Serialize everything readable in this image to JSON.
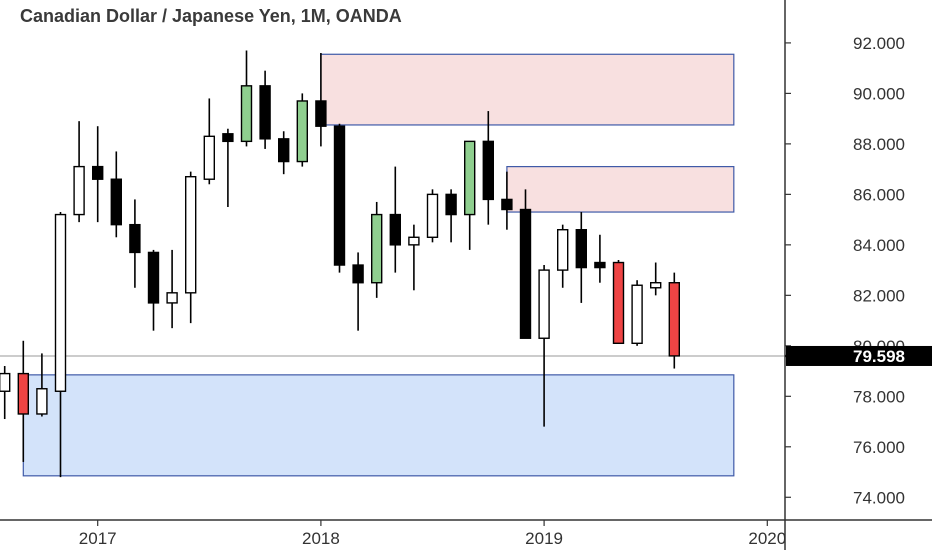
{
  "chart_data": {
    "type": "candlestick",
    "title": "Canadian Dollar / Japanese Yen, 1M, OANDA",
    "price_axis": {
      "ticks": [
        "74.000",
        "76.000",
        "78.000",
        "80.000",
        "82.000",
        "84.000",
        "86.000",
        "88.000",
        "90.000",
        "92.000"
      ],
      "tick_values": [
        74,
        76,
        78,
        80,
        82,
        84,
        86,
        88,
        90,
        92
      ],
      "ylim": [
        73.1,
        93.7
      ]
    },
    "time_axis": {
      "labels": [
        "2017",
        "2018",
        "2019",
        "2020"
      ],
      "label_index": [
        4,
        16,
        28,
        40
      ]
    },
    "current_price": {
      "label": "79.598",
      "value": 79.598,
      "color": "#000000"
    },
    "colors": {
      "bull_body": "#ffffff",
      "bear_body": "#000000",
      "highlight_bull": "#8fcf8f",
      "highlight_bear": "#ee4444",
      "supply_zone_fill": "#f8e0e0",
      "supply_zone_border": "#3f5aa8",
      "demand_zone_fill": "#d3e3fa",
      "demand_zone_border": "#3f5aa8",
      "price_line": "#999999"
    },
    "zones": [
      {
        "kind": "supply",
        "from_index": 16,
        "to_index": 38.2,
        "low": 88.75,
        "high": 91.55
      },
      {
        "kind": "supply",
        "from_index": 26,
        "to_index": 38.2,
        "low": 85.3,
        "high": 87.1
      },
      {
        "kind": "demand",
        "from_index": 0,
        "to_index": 38.2,
        "low": 74.85,
        "high": 78.85
      }
    ],
    "candles": [
      {
        "i": -1,
        "o": 78.2,
        "h": 79.2,
        "l": 77.1,
        "c": 78.9,
        "style": "bull"
      },
      {
        "i": 0,
        "o": 78.9,
        "h": 80.2,
        "l": 75.4,
        "c": 77.3,
        "style": "highlight_bear"
      },
      {
        "i": 1,
        "o": 77.3,
        "h": 79.7,
        "l": 77.2,
        "c": 78.3,
        "style": "bull"
      },
      {
        "i": 2,
        "o": 78.2,
        "h": 85.3,
        "l": 74.8,
        "c": 85.2,
        "style": "bull"
      },
      {
        "i": 3,
        "o": 85.2,
        "h": 88.9,
        "l": 84.9,
        "c": 87.1,
        "style": "bull"
      },
      {
        "i": 4,
        "o": 87.1,
        "h": 88.7,
        "l": 84.9,
        "c": 86.6,
        "style": "bear"
      },
      {
        "i": 5,
        "o": 86.6,
        "h": 87.7,
        "l": 84.3,
        "c": 84.8,
        "style": "bear"
      },
      {
        "i": 6,
        "o": 84.8,
        "h": 85.8,
        "l": 82.3,
        "c": 83.7,
        "style": "bear"
      },
      {
        "i": 7,
        "o": 83.7,
        "h": 83.8,
        "l": 80.6,
        "c": 81.7,
        "style": "bear"
      },
      {
        "i": 8,
        "o": 81.7,
        "h": 83.8,
        "l": 80.7,
        "c": 82.1,
        "style": "bull"
      },
      {
        "i": 9,
        "o": 82.1,
        "h": 86.9,
        "l": 80.9,
        "c": 86.7,
        "style": "bull"
      },
      {
        "i": 10,
        "o": 86.6,
        "h": 89.8,
        "l": 86.4,
        "c": 88.3,
        "style": "bull"
      },
      {
        "i": 11,
        "o": 88.4,
        "h": 88.6,
        "l": 85.5,
        "c": 88.1,
        "style": "bear"
      },
      {
        "i": 12,
        "o": 88.1,
        "h": 91.7,
        "l": 87.9,
        "c": 90.3,
        "style": "highlight_bull"
      },
      {
        "i": 13,
        "o": 90.3,
        "h": 90.9,
        "l": 87.8,
        "c": 88.2,
        "style": "bear"
      },
      {
        "i": 14,
        "o": 88.2,
        "h": 88.5,
        "l": 86.8,
        "c": 87.3,
        "style": "bear"
      },
      {
        "i": 15,
        "o": 87.3,
        "h": 90.0,
        "l": 87.1,
        "c": 89.7,
        "style": "highlight_bull"
      },
      {
        "i": 16,
        "o": 89.7,
        "h": 91.6,
        "l": 87.9,
        "c": 88.7,
        "style": "bear"
      },
      {
        "i": 17,
        "o": 88.7,
        "h": 88.8,
        "l": 82.9,
        "c": 83.2,
        "style": "bear"
      },
      {
        "i": 18,
        "o": 83.2,
        "h": 83.7,
        "l": 80.6,
        "c": 82.5,
        "style": "bear"
      },
      {
        "i": 19,
        "o": 82.5,
        "h": 85.7,
        "l": 81.9,
        "c": 85.2,
        "style": "highlight_bull"
      },
      {
        "i": 20,
        "o": 85.2,
        "h": 87.1,
        "l": 82.9,
        "c": 84.0,
        "style": "bear"
      },
      {
        "i": 21,
        "o": 84.0,
        "h": 84.8,
        "l": 82.2,
        "c": 84.3,
        "style": "bull"
      },
      {
        "i": 22,
        "o": 84.3,
        "h": 86.2,
        "l": 84.1,
        "c": 86.0,
        "style": "bull"
      },
      {
        "i": 23,
        "o": 86.0,
        "h": 86.2,
        "l": 84.1,
        "c": 85.2,
        "style": "bear"
      },
      {
        "i": 24,
        "o": 85.2,
        "h": 88.1,
        "l": 83.8,
        "c": 88.1,
        "style": "highlight_bull"
      },
      {
        "i": 25,
        "o": 88.1,
        "h": 89.3,
        "l": 84.8,
        "c": 85.8,
        "style": "bear"
      },
      {
        "i": 26,
        "o": 85.8,
        "h": 86.9,
        "l": 84.6,
        "c": 85.4,
        "style": "bear"
      },
      {
        "i": 27,
        "o": 85.4,
        "h": 86.2,
        "l": 80.3,
        "c": 80.3,
        "style": "bear"
      },
      {
        "i": 28,
        "o": 80.3,
        "h": 83.2,
        "l": 76.8,
        "c": 83.0,
        "style": "bull"
      },
      {
        "i": 29,
        "o": 83.0,
        "h": 84.8,
        "l": 82.3,
        "c": 84.6,
        "style": "bull"
      },
      {
        "i": 30,
        "o": 84.6,
        "h": 85.3,
        "l": 81.7,
        "c": 83.1,
        "style": "bear"
      },
      {
        "i": 31,
        "o": 83.1,
        "h": 84.4,
        "l": 82.5,
        "c": 83.3,
        "style": "bear"
      },
      {
        "i": 32,
        "o": 83.3,
        "h": 83.4,
        "l": 80.1,
        "c": 80.1,
        "style": "highlight_bear"
      },
      {
        "i": 33,
        "o": 80.1,
        "h": 82.6,
        "l": 80.0,
        "c": 82.4,
        "style": "bull"
      },
      {
        "i": 34,
        "o": 82.3,
        "h": 83.3,
        "l": 82.0,
        "c": 82.5,
        "style": "bull"
      },
      {
        "i": 35,
        "o": 82.5,
        "h": 82.9,
        "l": 79.1,
        "c": 79.6,
        "style": "highlight_bear"
      }
    ]
  }
}
